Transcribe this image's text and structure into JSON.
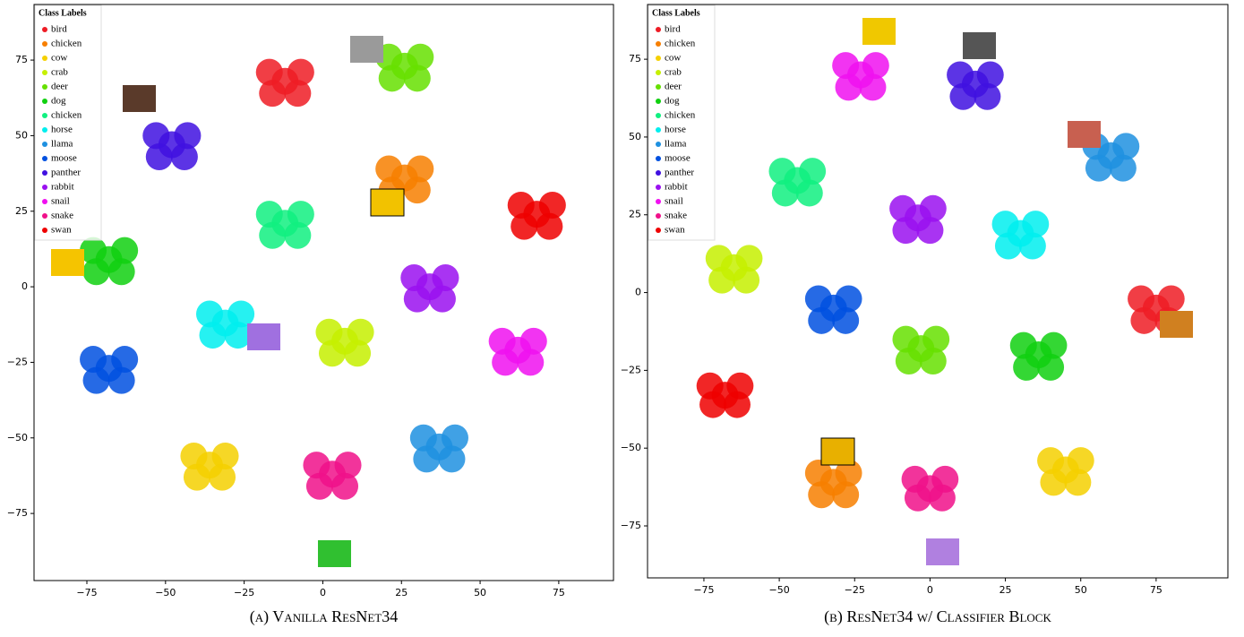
{
  "chart_data": [
    {
      "type": "scatter",
      "caption": "(a) Vanilla ResNet34",
      "legend_title": "Class Labels",
      "legend_position": "upper left",
      "xlim": [
        -91.8,
        92.4
      ],
      "ylim": [
        -97.2,
        93.4
      ],
      "xticks": [
        {
          "value": -75,
          "label": "−75"
        },
        {
          "value": -50,
          "label": "−50"
        },
        {
          "value": -25,
          "label": "−25"
        },
        0,
        25,
        50,
        75
      ],
      "yticks": [
        {
          "value": -75,
          "label": "−75"
        },
        {
          "value": -50,
          "label": "−50"
        },
        {
          "value": -25,
          "label": "−25"
        },
        0,
        25,
        50,
        75
      ],
      "series": [
        {
          "name": "bird",
          "color": "#ee1c25",
          "x": [
            -12,
            -17,
            -7,
            -16,
            -8
          ],
          "y": [
            68,
            71,
            71,
            64,
            64
          ]
        },
        {
          "name": "chicken",
          "color": "#f77f00",
          "x": [
            26,
            21,
            31,
            22,
            30
          ],
          "y": [
            36,
            39,
            39,
            32,
            32
          ]
        },
        {
          "name": "cow",
          "color": "#f5d000",
          "x": [
            -36,
            -41,
            -31,
            -40,
            -32
          ],
          "y": [
            -59,
            -56,
            -56,
            -63,
            -63
          ]
        },
        {
          "name": "crab",
          "color": "#c6f000",
          "x": [
            7,
            2,
            12,
            3,
            11
          ],
          "y": [
            -18,
            -15,
            -15,
            -22,
            -22
          ]
        },
        {
          "name": "deer",
          "color": "#66e000",
          "x": [
            26,
            21,
            31,
            22,
            30
          ],
          "y": [
            73,
            76,
            76,
            69,
            69
          ]
        },
        {
          "name": "dog",
          "color": "#10d010",
          "x": [
            -68,
            -73,
            -63,
            -72,
            -64
          ],
          "y": [
            9,
            12,
            12,
            5,
            5
          ]
        },
        {
          "name": "chicken",
          "color": "#10f080",
          "x": [
            -12,
            -17,
            -7,
            -16,
            -8
          ],
          "y": [
            21,
            24,
            24,
            17,
            17
          ]
        },
        {
          "name": "horse",
          "color": "#00eeee",
          "x": [
            -31,
            -36,
            -26,
            -35,
            -27
          ],
          "y": [
            -12,
            -9,
            -9,
            -16,
            -16
          ]
        },
        {
          "name": "llama",
          "color": "#1e90e0",
          "x": [
            37,
            32,
            42,
            33,
            41
          ],
          "y": [
            -53,
            -50,
            -50,
            -57,
            -57
          ]
        },
        {
          "name": "moose",
          "color": "#0050e0",
          "x": [
            -68,
            -73,
            -63,
            -72,
            -64
          ],
          "y": [
            -27,
            -24,
            -24,
            -31,
            -31
          ]
        },
        {
          "name": "panther",
          "color": "#4010e0",
          "x": [
            -48,
            -53,
            -43,
            -52,
            -44
          ],
          "y": [
            47,
            50,
            50,
            43,
            43
          ]
        },
        {
          "name": "rabbit",
          "color": "#9a10f0",
          "x": [
            34,
            29,
            39,
            30,
            38
          ],
          "y": [
            0,
            3,
            3,
            -4,
            -4
          ]
        },
        {
          "name": "snail",
          "color": "#f010f0",
          "x": [
            62,
            57,
            67,
            58,
            66
          ],
          "y": [
            -21,
            -18,
            -18,
            -25,
            -25
          ]
        },
        {
          "name": "snake",
          "color": "#f0108a",
          "x": [
            3,
            -2,
            8,
            -1,
            7
          ],
          "y": [
            -62,
            -59,
            -59,
            -66,
            -66
          ]
        },
        {
          "name": "swan",
          "color": "#ee0000",
          "x": [
            68,
            63,
            73,
            64,
            72
          ],
          "y": [
            24,
            27,
            27,
            20,
            20
          ]
        }
      ]
    },
    {
      "type": "scatter",
      "caption": "(b) ResNet34 w/ Classifier Block",
      "legend_title": "Class Labels",
      "legend_position": "upper left",
      "xlim": [
        -93.7,
        98.8
      ],
      "ylim": [
        -91.7,
        92.6
      ],
      "xticks": [
        {
          "value": -75,
          "label": "−75"
        },
        {
          "value": -50,
          "label": "−50"
        },
        {
          "value": -25,
          "label": "−25"
        },
        0,
        25,
        50,
        75
      ],
      "yticks": [
        {
          "value": -75,
          "label": "−75"
        },
        {
          "value": -50,
          "label": "−50"
        },
        {
          "value": -25,
          "label": "−25"
        },
        0,
        25,
        50,
        75
      ],
      "series": [
        {
          "name": "bird",
          "color": "#ee1c25",
          "x": [
            75,
            70,
            80,
            71,
            79
          ],
          "y": [
            -5,
            -2,
            -2,
            -9,
            -9
          ]
        },
        {
          "name": "chicken",
          "color": "#f77f00",
          "x": [
            -32,
            -37,
            -27,
            -36,
            -28
          ],
          "y": [
            -61,
            -58,
            -58,
            -65,
            -65
          ]
        },
        {
          "name": "cow",
          "color": "#f5d000",
          "x": [
            45,
            40,
            50,
            41,
            49
          ],
          "y": [
            -57,
            -54,
            -54,
            -61,
            -61
          ]
        },
        {
          "name": "crab",
          "color": "#c6f000",
          "x": [
            -65,
            -70,
            -60,
            -69,
            -61
          ],
          "y": [
            8,
            11,
            11,
            4,
            4
          ]
        },
        {
          "name": "deer",
          "color": "#66e000",
          "x": [
            -3,
            -8,
            2,
            -7,
            1
          ],
          "y": [
            -18,
            -15,
            -15,
            -22,
            -22
          ]
        },
        {
          "name": "dog",
          "color": "#10d010",
          "x": [
            36,
            31,
            41,
            32,
            40
          ],
          "y": [
            -20,
            -17,
            -17,
            -24,
            -24
          ]
        },
        {
          "name": "chicken",
          "color": "#10f080",
          "x": [
            -44,
            -49,
            -39,
            -48,
            -40
          ],
          "y": [
            36,
            39,
            39,
            32,
            32
          ]
        },
        {
          "name": "horse",
          "color": "#00eeee",
          "x": [
            30,
            25,
            35,
            26,
            34
          ],
          "y": [
            19,
            22,
            22,
            15,
            15
          ]
        },
        {
          "name": "llama",
          "color": "#1e90e0",
          "x": [
            60,
            55,
            65,
            56,
            64
          ],
          "y": [
            44,
            47,
            47,
            40,
            40
          ]
        },
        {
          "name": "moose",
          "color": "#0050e0",
          "x": [
            -32,
            -37,
            -27,
            -36,
            -28
          ],
          "y": [
            -5,
            -2,
            -2,
            -9,
            -9
          ]
        },
        {
          "name": "panther",
          "color": "#4010e0",
          "x": [
            15,
            10,
            20,
            11,
            19
          ],
          "y": [
            67,
            70,
            70,
            63,
            63
          ]
        },
        {
          "name": "rabbit",
          "color": "#9a10f0",
          "x": [
            -4,
            -9,
            1,
            -8,
            0
          ],
          "y": [
            24,
            27,
            27,
            20,
            20
          ]
        },
        {
          "name": "snail",
          "color": "#f010f0",
          "x": [
            -23,
            -28,
            -18,
            -27,
            -19
          ],
          "y": [
            70,
            73,
            73,
            66,
            66
          ]
        },
        {
          "name": "snake",
          "color": "#f0108a",
          "x": [
            0,
            -5,
            5,
            -4,
            4
          ],
          "y": [
            -63,
            -60,
            -60,
            -66,
            -66
          ]
        },
        {
          "name": "swan",
          "color": "#ee0000",
          "x": [
            -68,
            -73,
            -63,
            -72,
            -64
          ],
          "y": [
            -33,
            -30,
            -30,
            -36,
            -36
          ]
        }
      ]
    }
  ]
}
